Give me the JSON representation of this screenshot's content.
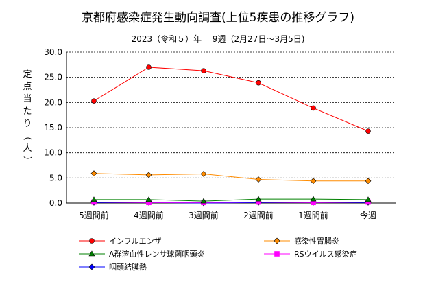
{
  "chart_data": {
    "type": "line",
    "title": "京都府感染症発生動向調査(上位5疾患の推移グラフ)",
    "subtitle": "2023（令和５）年　 9週（2月27日〜3月5日)",
    "ylabel": "定点当たり（人）",
    "xlabel": "",
    "categories": [
      "5週間前",
      "4週間前",
      "3週間前",
      "2週間前",
      "1週間前",
      "今週"
    ],
    "ylim": [
      0,
      30
    ],
    "yticks": [
      "0.0",
      "5.0",
      "10.0",
      "15.0",
      "20.0",
      "25.0",
      "30.0"
    ],
    "grid": "horizontal dashed",
    "legend_position": "bottom",
    "series": [
      {
        "name": "インフルエンザ",
        "color": "#ff0000",
        "marker": "circle",
        "values": [
          20.3,
          27.0,
          26.3,
          23.9,
          18.9,
          14.3
        ]
      },
      {
        "name": "感染性胃腸炎",
        "color": "#ff8c00",
        "marker": "diamond",
        "values": [
          5.9,
          5.6,
          5.8,
          4.7,
          4.4,
          4.4
        ]
      },
      {
        "name": "A群溶血性レンサ球菌咽頭炎",
        "color": "#008000",
        "marker": "triangle",
        "values": [
          0.7,
          0.7,
          0.4,
          0.8,
          0.8,
          0.7
        ]
      },
      {
        "name": "RSウイルス感染症",
        "color": "#ff00ff",
        "marker": "square",
        "values": [
          0.2,
          0.1,
          0.1,
          0.2,
          0.1,
          0.2
        ]
      },
      {
        "name": "咽頭結膜熱",
        "color": "#0000ff",
        "marker": "diamond",
        "values": [
          0.1,
          0.1,
          0.0,
          0.1,
          0.1,
          0.1
        ]
      }
    ]
  }
}
